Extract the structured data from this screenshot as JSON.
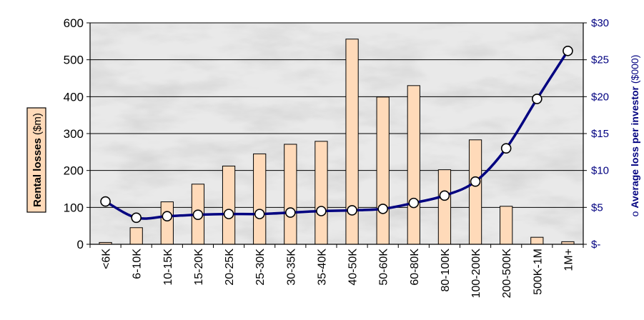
{
  "chart_data": {
    "type": "bar",
    "categories": [
      "<6K",
      "6-10K",
      "10-15K",
      "15-20K",
      "20-25K",
      "25-30K",
      "30-35K",
      "35-40K",
      "40-50K",
      "50-60K",
      "60-80K",
      "80-100K",
      "100-200K",
      "200-500K",
      "500K-1M",
      "1M+"
    ],
    "series": [
      {
        "type": "bar",
        "axis": "left",
        "values": [
          5,
          45,
          115,
          163,
          212,
          245,
          271,
          279,
          556,
          399,
          430,
          202,
          283,
          103,
          19,
          7
        ],
        "color": "#FFDAB9"
      },
      {
        "type": "line",
        "axis": "right",
        "values": [
          5.8,
          3.6,
          3.8,
          4.0,
          4.1,
          4.1,
          4.3,
          4.5,
          4.6,
          4.8,
          5.6,
          6.6,
          8.5,
          13.0,
          19.7,
          26.2
        ],
        "color": "#000080"
      }
    ],
    "ylabel_bold": "Rental  losses",
    "ylabel_unit": " ($m)",
    "y2label_prefix": "o ",
    "y2label_bold": "Average loss per investor",
    "y2label_unit": " ($000)",
    "ylim": [
      0,
      600
    ],
    "y2lim": [
      0,
      30
    ],
    "yticks": [
      "0",
      "100",
      "200",
      "300",
      "400",
      "500",
      "600"
    ],
    "y2ticks": [
      "$-",
      "$5",
      "$10",
      "$15",
      "$20",
      "$25",
      "$30"
    ],
    "grid": true,
    "legend": "none"
  }
}
